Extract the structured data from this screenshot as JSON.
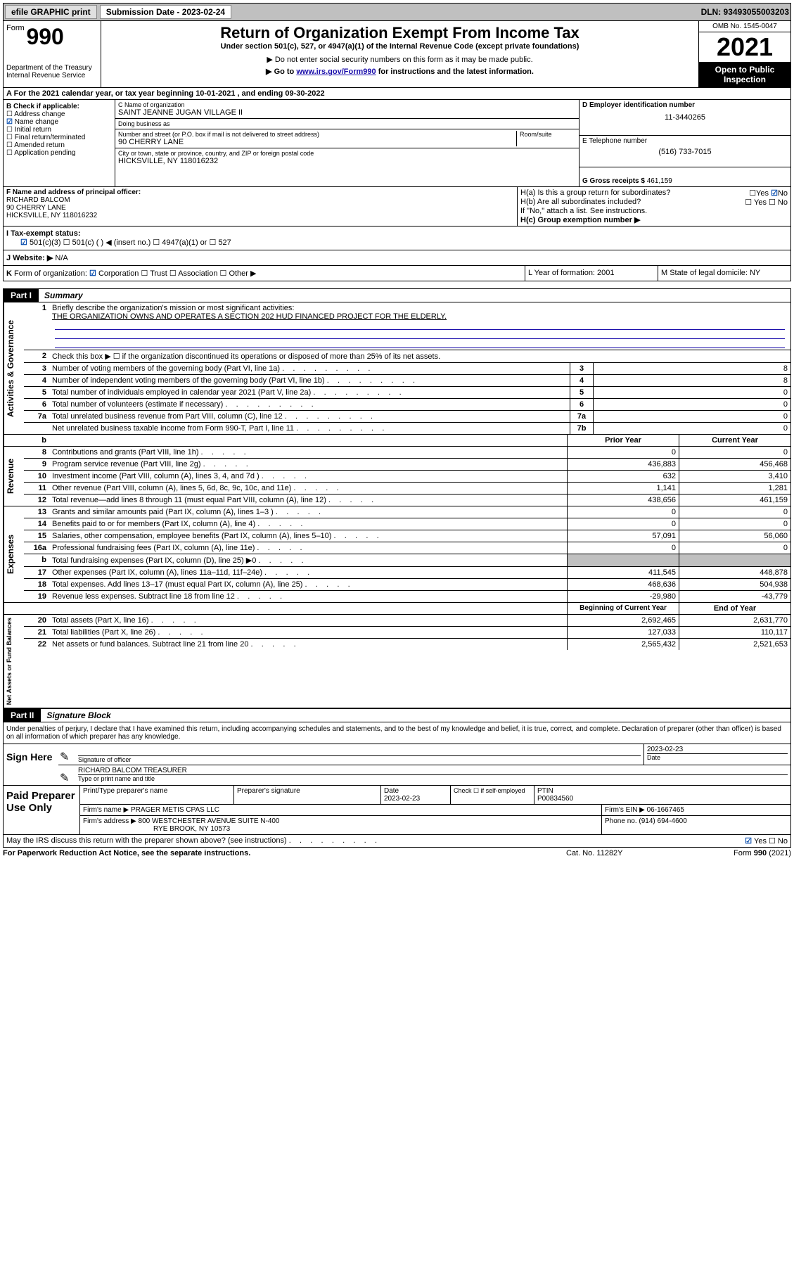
{
  "topbar": {
    "efile": "efile GRAPHIC print",
    "sub_label": "Submission Date - 2023-02-24",
    "dln": "DLN: 93493055003203"
  },
  "header": {
    "form_label": "Form",
    "form_no": "990",
    "dept": "Department of the Treasury\nInternal Revenue Service",
    "title": "Return of Organization Exempt From Income Tax",
    "sub1": "Under section 501(c), 527, or 4947(a)(1) of the Internal Revenue Code (except private foundations)",
    "sub2": "▶ Do not enter social security numbers on this form as it may be made public.",
    "sub3_pre": "▶ Go to ",
    "sub3_link": "www.irs.gov/Form990",
    "sub3_post": " for instructions and the latest information.",
    "omb": "OMB No. 1545-0047",
    "year": "2021",
    "open": "Open to Public Inspection"
  },
  "rowA": "A  For the 2021 calendar year, or tax year beginning 10-01-2021    , and ending 09-30-2022",
  "sectionB": {
    "heading": "B Check if applicable:",
    "items": [
      "Address change",
      "Name change",
      "Initial return",
      "Final return/terminated",
      "Amended return",
      "Application pending"
    ],
    "checked_idx": 1
  },
  "sectionC": {
    "name_lbl": "C Name of organization",
    "name": "SAINT JEANNE JUGAN VILLAGE II",
    "dba_lbl": "Doing business as",
    "dba": "",
    "addr_lbl": "Number and street (or P.O. box if mail is not delivered to street address)",
    "room_lbl": "Room/suite",
    "addr": "90 CHERRY LANE",
    "city_lbl": "City or town, state or province, country, and ZIP or foreign postal code",
    "city": "HICKSVILLE, NY  118016232"
  },
  "sectionD": {
    "ein_lbl": "D Employer identification number",
    "ein": "11-3440265",
    "tel_lbl": "E Telephone number",
    "tel": "(516) 733-7015",
    "gross_lbl": "G Gross receipts $",
    "gross": "461,159"
  },
  "sectionF": {
    "lbl": "F  Name and address of principal officer:",
    "name": "RICHARD BALCOM",
    "addr1": "90 CHERRY LANE",
    "addr2": "HICKSVILLE, NY  118016232"
  },
  "sectionH": {
    "a": "H(a)  Is this a group return for subordinates?",
    "a_no": "No",
    "b": "H(b)  Are all subordinates included?",
    "b_yn": "☐ Yes  ☐ No",
    "note": "If \"No,\" attach a list. See instructions.",
    "c": "H(c)  Group exemption number ▶"
  },
  "taxStatus": {
    "lbl": "I    Tax-exempt status:",
    "opts": "501(c)(3)    ☐  501(c) (  ) ◀ (insert no.)     ☐ 4947(a)(1) or   ☐ 527"
  },
  "website": {
    "lbl": "J   Website: ▶",
    "val": "N/A"
  },
  "rowK": {
    "k": "K Form of organization:  ☑ Corporation  ☐ Trust  ☐ Association  ☐ Other ▶",
    "l": "L Year of formation: 2001",
    "m": "M State of legal domicile: NY"
  },
  "part1": {
    "label": "Part I",
    "title": "Summary"
  },
  "summary": {
    "gov_label": "Activities & Governance",
    "rev_label": "Revenue",
    "exp_label": "Expenses",
    "net_label": "Net Assets or Fund Balances",
    "line1_lbl": "Briefly describe the organization's mission or most significant activities:",
    "line1_text": "THE ORGANIZATION OWNS AND OPERATES A SECTION 202 HUD FINANCED PROJECT FOR THE ELDERLY.",
    "line2": "Check this box ▶ ☐  if the organization discontinued its operations or disposed of more than 25% of its net assets.",
    "rows_gov": [
      {
        "n": "3",
        "t": "Number of voting members of the governing body (Part VI, line 1a)",
        "k": "3",
        "v": "8"
      },
      {
        "n": "4",
        "t": "Number of independent voting members of the governing body (Part VI, line 1b)",
        "k": "4",
        "v": "8"
      },
      {
        "n": "5",
        "t": "Total number of individuals employed in calendar year 2021 (Part V, line 2a)",
        "k": "5",
        "v": "0"
      },
      {
        "n": "6",
        "t": "Total number of volunteers (estimate if necessary)",
        "k": "6",
        "v": "0"
      },
      {
        "n": "7a",
        "t": "Total unrelated business revenue from Part VIII, column (C), line 12",
        "k": "7a",
        "v": "0"
      },
      {
        "n": "",
        "t": "Net unrelated business taxable income from Form 990-T, Part I, line 11",
        "k": "7b",
        "v": "0"
      }
    ],
    "col_hdr_prior": "Prior Year",
    "col_hdr_curr": "Current Year",
    "rows_rev": [
      {
        "n": "8",
        "t": "Contributions and grants (Part VIII, line 1h)",
        "p": "0",
        "c": "0"
      },
      {
        "n": "9",
        "t": "Program service revenue (Part VIII, line 2g)",
        "p": "436,883",
        "c": "456,468"
      },
      {
        "n": "10",
        "t": "Investment income (Part VIII, column (A), lines 3, 4, and 7d )",
        "p": "632",
        "c": "3,410"
      },
      {
        "n": "11",
        "t": "Other revenue (Part VIII, column (A), lines 5, 6d, 8c, 9c, 10c, and 11e)",
        "p": "1,141",
        "c": "1,281"
      },
      {
        "n": "12",
        "t": "Total revenue—add lines 8 through 11 (must equal Part VIII, column (A), line 12)",
        "p": "438,656",
        "c": "461,159"
      }
    ],
    "rows_exp": [
      {
        "n": "13",
        "t": "Grants and similar amounts paid (Part IX, column (A), lines 1–3 )",
        "p": "0",
        "c": "0"
      },
      {
        "n": "14",
        "t": "Benefits paid to or for members (Part IX, column (A), line 4)",
        "p": "0",
        "c": "0"
      },
      {
        "n": "15",
        "t": "Salaries, other compensation, employee benefits (Part IX, column (A), lines 5–10)",
        "p": "57,091",
        "c": "56,060"
      },
      {
        "n": "16a",
        "t": "Professional fundraising fees (Part IX, column (A), line 11e)",
        "p": "0",
        "c": "0"
      },
      {
        "n": "b",
        "t": "Total fundraising expenses (Part IX, column (D), line 25) ▶0",
        "p": "",
        "c": "",
        "grey": true
      },
      {
        "n": "17",
        "t": "Other expenses (Part IX, column (A), lines 11a–11d, 11f–24e)",
        "p": "411,545",
        "c": "448,878"
      },
      {
        "n": "18",
        "t": "Total expenses. Add lines 13–17 (must equal Part IX, column (A), line 25)",
        "p": "468,636",
        "c": "504,938"
      },
      {
        "n": "19",
        "t": "Revenue less expenses. Subtract line 18 from line 12",
        "p": "-29,980",
        "c": "-43,779"
      }
    ],
    "col_hdr_beg": "Beginning of Current Year",
    "col_hdr_end": "End of Year",
    "rows_net": [
      {
        "n": "20",
        "t": "Total assets (Part X, line 16)",
        "p": "2,692,465",
        "c": "2,631,770"
      },
      {
        "n": "21",
        "t": "Total liabilities (Part X, line 26)",
        "p": "127,033",
        "c": "110,117"
      },
      {
        "n": "22",
        "t": "Net assets or fund balances. Subtract line 21 from line 20",
        "p": "2,565,432",
        "c": "2,521,653"
      }
    ]
  },
  "part2": {
    "label": "Part II",
    "title": "Signature Block"
  },
  "declaration": "Under penalties of perjury, I declare that I have examined this return, including accompanying schedules and statements, and to the best of my knowledge and belief, it is true, correct, and complete. Declaration of preparer (other than officer) is based on all information of which preparer has any knowledge.",
  "sign": {
    "lbl": "Sign Here",
    "sig_officer": "Signature of officer",
    "date_lbl": "Date",
    "date": "2023-02-23",
    "name": "RICHARD BALCOM  TREASURER",
    "name_lbl": "Type or print name and title"
  },
  "paid": {
    "lbl": "Paid Preparer Use Only",
    "h1": "Print/Type preparer's name",
    "h2": "Preparer's signature",
    "h3": "Date",
    "h4": "Check ☐ if self-employed",
    "h5": "PTIN",
    "date": "2023-02-23",
    "ptin": "P00834560",
    "firm_lbl": "Firm's name     ▶",
    "firm": "PRAGER METIS CPAS LLC",
    "ein_lbl": "Firm's EIN ▶",
    "ein": "06-1667465",
    "addr_lbl": "Firm's address ▶",
    "addr1": "800 WESTCHESTER AVENUE SUITE N-400",
    "addr2": "RYE BROOK, NY  10573",
    "phone_lbl": "Phone no.",
    "phone": "(914) 694-4600"
  },
  "discuss": {
    "text": "May the IRS discuss this return with the preparer shown above? (see instructions)",
    "yn": "☑ Yes  ☐ No"
  },
  "footer": {
    "pra": "For Paperwork Reduction Act Notice, see the separate instructions.",
    "cat": "Cat. No. 11282Y",
    "form": "Form 990 (2021)"
  }
}
